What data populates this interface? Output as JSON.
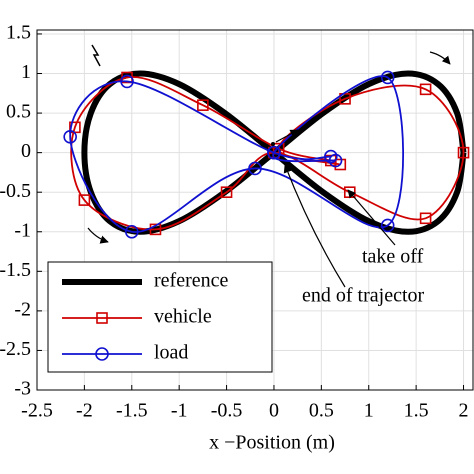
{
  "chart_data": {
    "type": "line",
    "xlabel": "x −Position (m)",
    "xlim": [
      -2.5,
      2.1
    ],
    "ylim": [
      -3,
      1.55
    ],
    "xticks": [
      -2.5,
      -2,
      -1.5,
      -1,
      -0.5,
      0,
      0.5,
      1,
      1.5,
      2
    ],
    "yticks": [
      -3,
      -2.5,
      -2,
      -1.5,
      -1,
      -0.5,
      0,
      0.5,
      1,
      1.5
    ],
    "grid": true,
    "legend": "lower left",
    "annotations": [
      "take off",
      "end of trajector"
    ],
    "series": [
      {
        "name": "reference",
        "color": "#000000",
        "x": [
          2,
          1.932,
          1.732,
          1.414,
          1,
          0.518,
          0,
          -0.518,
          -1,
          -1.414,
          -1.732,
          -1.932,
          -2,
          -1.932,
          -1.732,
          -1.414,
          -1,
          -0.518,
          0,
          0.518,
          1,
          1.414,
          1.732,
          1.932,
          2
        ],
        "values": [
          0,
          0.5,
          0.866,
          1,
          0.866,
          0.5,
          0,
          -0.5,
          -0.866,
          -1,
          -0.866,
          -0.5,
          0,
          0.5,
          0.866,
          1,
          0.866,
          0.5,
          0,
          -0.5,
          -0.866,
          -1,
          -0.866,
          -0.5,
          0
        ]
      },
      {
        "name": "vehicle",
        "color": "#d00000",
        "x": [
          0.7,
          0.05,
          0.75,
          1.6,
          2.0,
          1.6,
          0.8,
          0,
          -0.5,
          -1.25,
          -2.0,
          -2.1,
          -1.55,
          -0.75,
          0.05,
          0.6
        ],
        "values": [
          -0.15,
          0.05,
          0.68,
          0.8,
          0,
          -0.83,
          -0.5,
          0,
          -0.5,
          -0.97,
          -0.6,
          0.32,
          0.95,
          0.6,
          0.05,
          -0.1
        ]
      },
      {
        "name": "load",
        "color": "#1010d0",
        "x": [
          0.65,
          0.0,
          1.2,
          1.2,
          -0.2,
          -1.5,
          -2.15,
          -1.55,
          0.0,
          0.6
        ],
        "values": [
          -0.1,
          0.0,
          0.95,
          -0.92,
          -0.2,
          -1.0,
          0.2,
          0.9,
          0.0,
          -0.05
        ]
      }
    ]
  }
}
